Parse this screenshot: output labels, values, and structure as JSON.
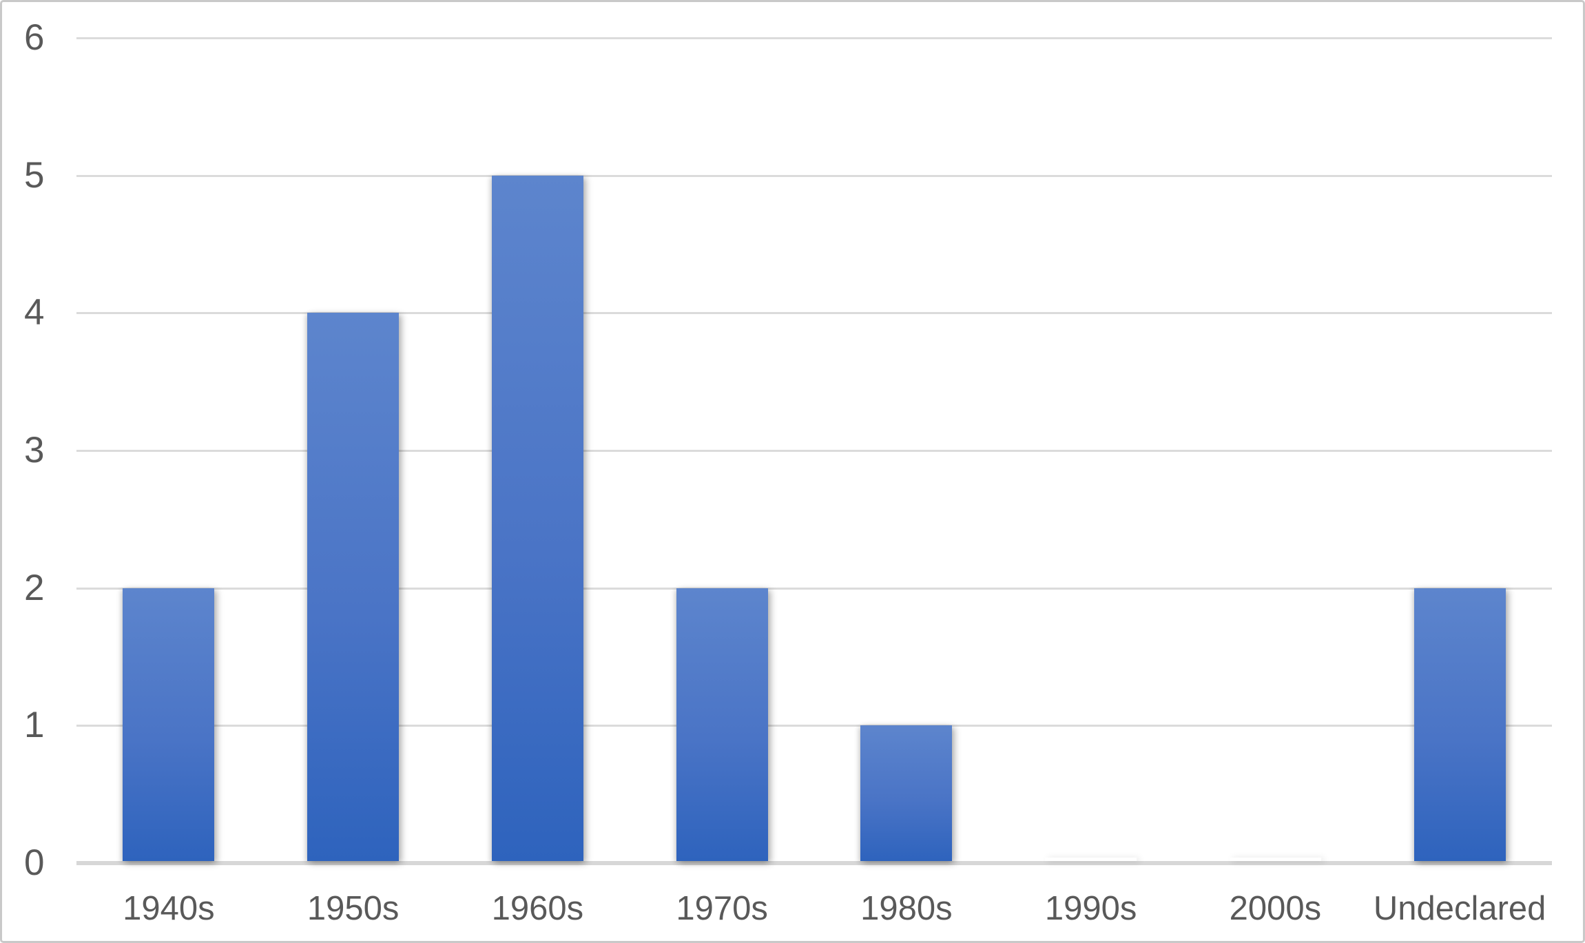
{
  "chart_data": {
    "type": "bar",
    "categories": [
      "1940s",
      "1950s",
      "1960s",
      "1970s",
      "1980s",
      "1990s",
      "2000s",
      "Undeclared"
    ],
    "values": [
      2,
      4,
      5,
      2,
      1,
      0,
      0,
      2
    ],
    "series_count": 1,
    "title": "",
    "xlabel": "",
    "ylabel": "",
    "ylim": [
      0,
      6
    ],
    "ytick_interval": 1,
    "yticks": [
      "0",
      "1",
      "2",
      "3",
      "4",
      "5",
      "6"
    ],
    "grid": "horizontal",
    "legend": "none",
    "colors": {
      "bar_gradient_top": "#5d85cd",
      "bar_gradient_mid": "#4a74c6",
      "bar_gradient_bottom": "#2e63bd",
      "axis_label": "#595959",
      "gridline": "#dbdbdb",
      "baseline": "#d7d7d7",
      "frame_border": "#c9c9c9",
      "background": "#ffffff"
    }
  }
}
